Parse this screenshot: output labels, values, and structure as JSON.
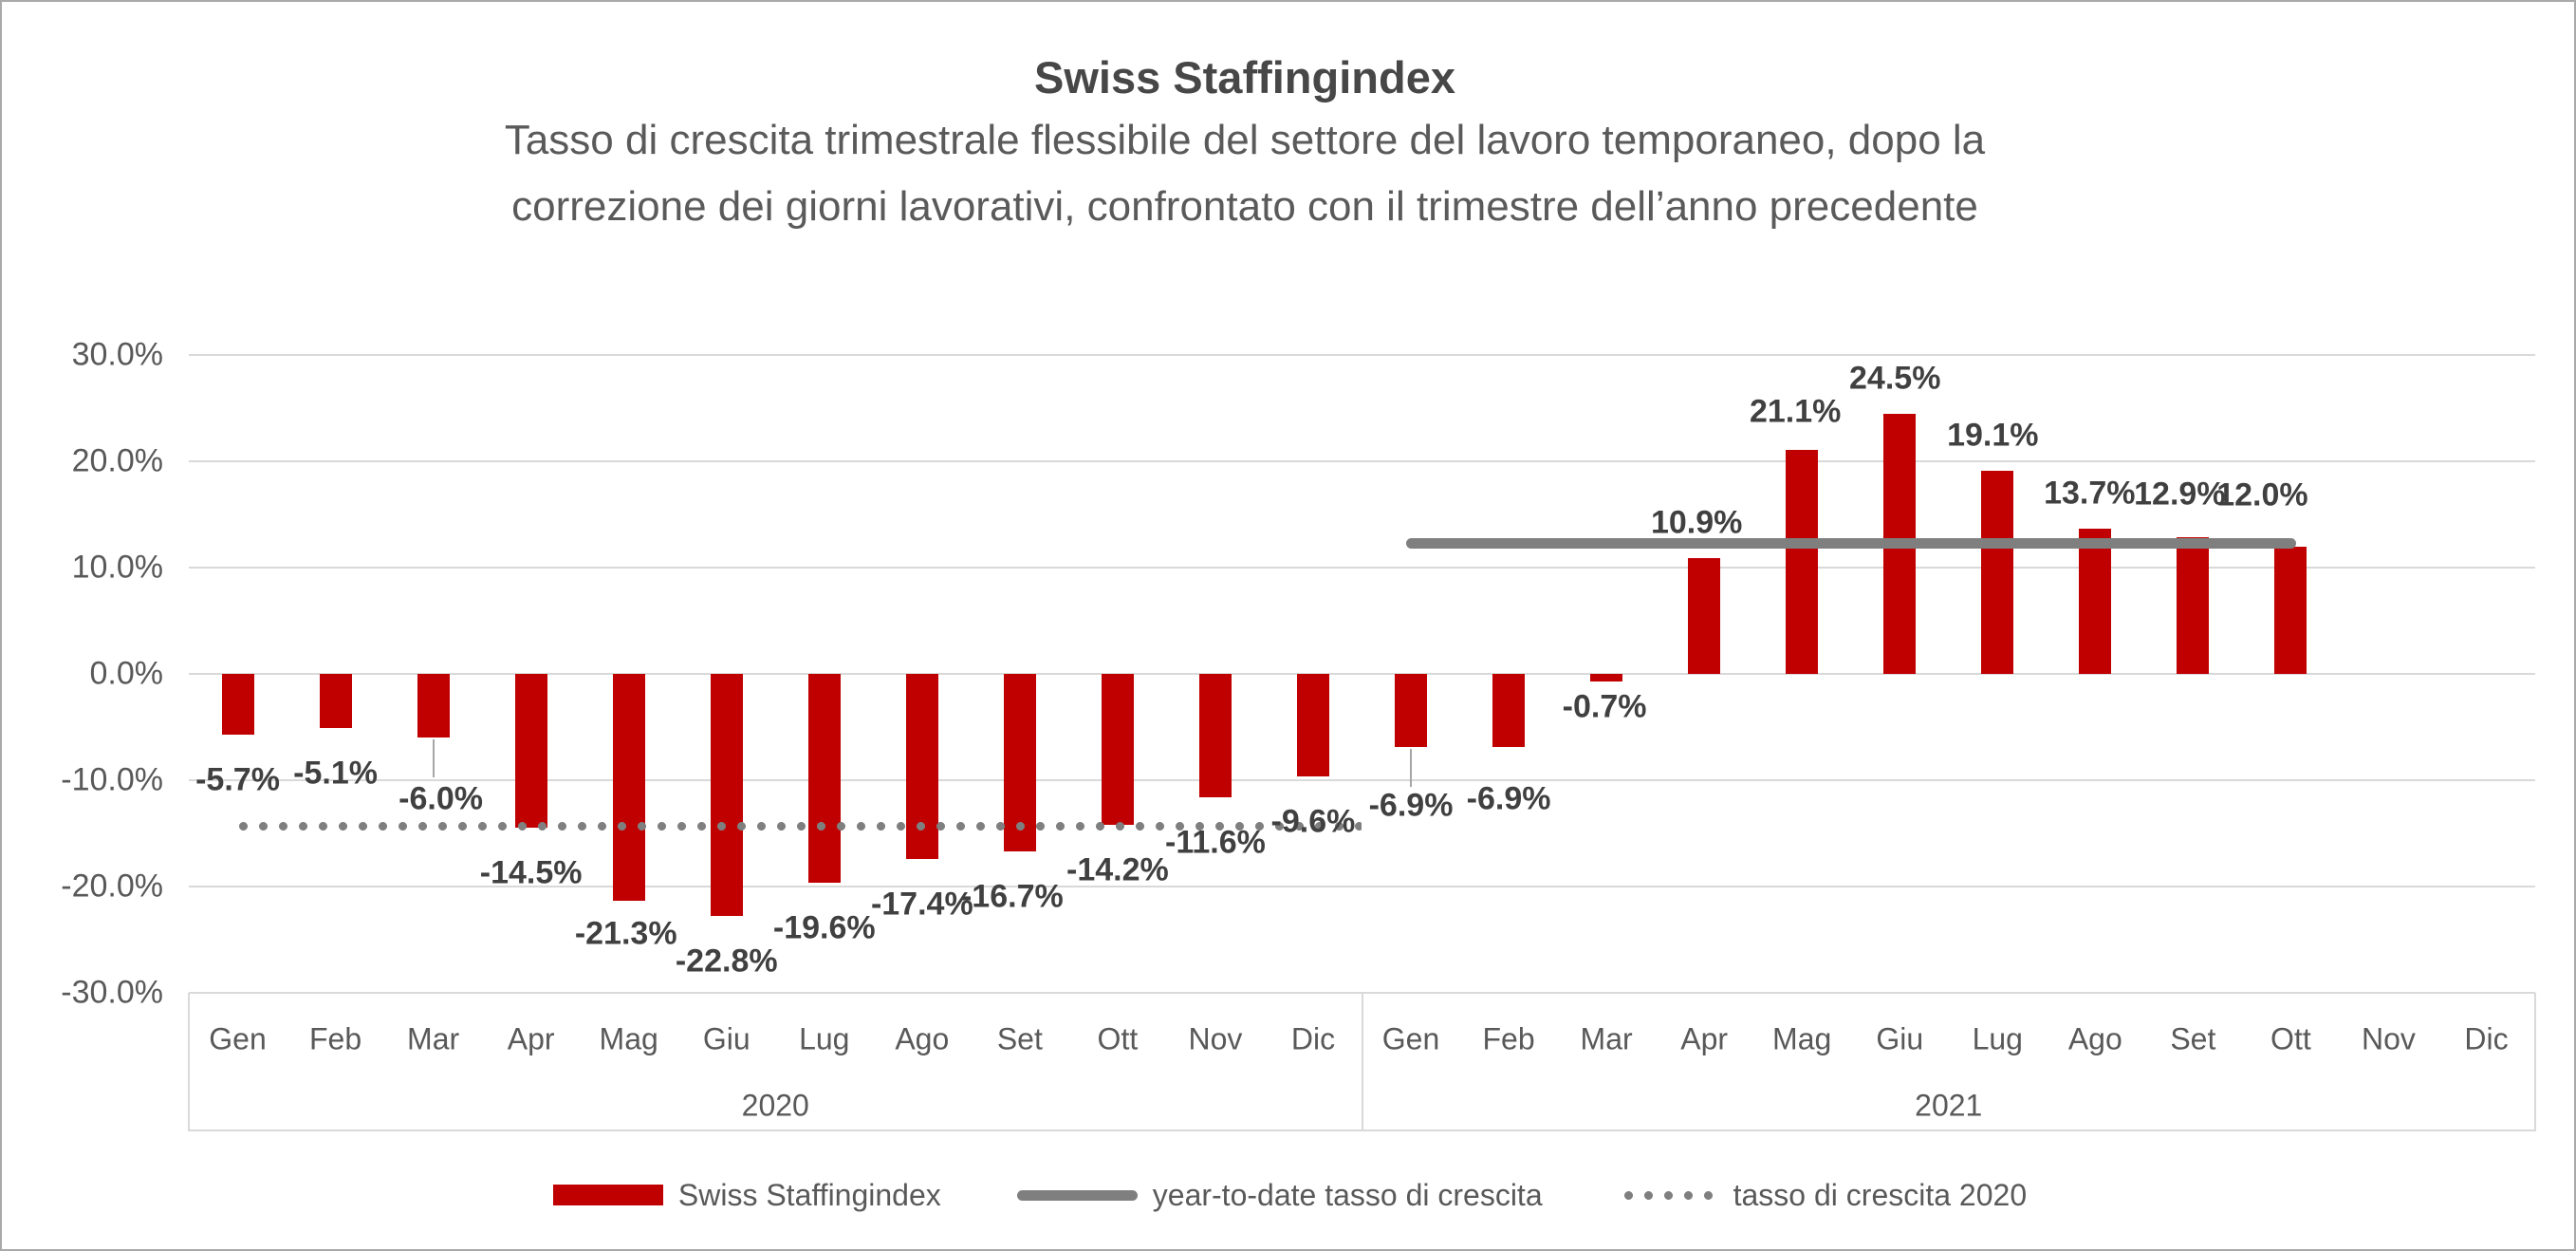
{
  "chart_data": {
    "type": "bar",
    "title": "Swiss Staffingindex",
    "subtitle_lines": [
      "Tasso di crescita trimestrale flessibile del settore del lavoro temporaneo, dopo la",
      "correzione dei giorni lavorativi, confrontato con il trimestre dell’anno precedente"
    ],
    "categories": [
      "Gen",
      "Feb",
      "Mar",
      "Apr",
      "Mag",
      "Giu",
      "Lug",
      "Ago",
      "Set",
      "Ott",
      "Nov",
      "Dic",
      "Gen",
      "Feb",
      "Mar",
      "Apr",
      "Mag",
      "Giu",
      "Lug",
      "Ago",
      "Set",
      "Ott",
      "Nov",
      "Dic"
    ],
    "year_groups": [
      {
        "label": "2020",
        "start_index": 0,
        "end_index": 11
      },
      {
        "label": "2021",
        "start_index": 12,
        "end_index": 23
      }
    ],
    "series": [
      {
        "name": "Swiss Staffingindex",
        "type": "bar",
        "color": "#c00000",
        "values": [
          -5.7,
          -5.1,
          -6.0,
          -14.5,
          -21.3,
          -22.8,
          -19.6,
          -17.4,
          -16.7,
          -14.2,
          -11.6,
          -9.6,
          -6.9,
          -6.9,
          -0.7,
          10.9,
          21.1,
          24.5,
          19.1,
          13.7,
          12.9,
          12.0,
          null,
          null
        ],
        "data_labels": [
          "-5.7%",
          "-5.1%",
          "-6.0%",
          "-14.5%",
          "-21.3%",
          "-22.8%",
          "-19.6%",
          "-17.4%",
          "-16.7%",
          "-14.2%",
          "-11.6%",
          "-9.6%",
          "-6.9%",
          "-6.9%",
          "-0.7%",
          "10.9%",
          "21.1%",
          "24.5%",
          "19.1%",
          "13.7%",
          "12.9%",
          "12.0%",
          null,
          null
        ]
      },
      {
        "name": "year-to-date tasso di crescita",
        "type": "line",
        "color": "#7f7f7f",
        "value": 12.3,
        "start_index": 12,
        "end_index": 21
      },
      {
        "name": "tasso di crescita 2020",
        "type": "dotted-line",
        "color": "#7f7f7f",
        "value": -14.3,
        "start_index": 0,
        "end_index": 11.5
      }
    ],
    "y_axis": {
      "min": -30,
      "max": 30,
      "step": 10,
      "tick_labels": [
        "30.0%",
        "20.0%",
        "10.0%",
        "0.0%",
        "-10.0%",
        "-20.0%",
        "-30.0%"
      ],
      "tick_values": [
        30,
        20,
        10,
        0,
        -10,
        -20,
        -30
      ],
      "grid": true
    },
    "legend": [
      {
        "label": "Swiss Staffingindex",
        "marker": "bar",
        "color": "#c00000"
      },
      {
        "label": "year-to-date tasso di crescita",
        "marker": "line",
        "color": "#7f7f7f"
      },
      {
        "label": "tasso di crescita 2020",
        "marker": "dotted-line",
        "color": "#7f7f7f"
      }
    ],
    "colors": {
      "bar": "#c00000",
      "reference_lines": "#7f7f7f",
      "gridlines": "#d9d9d9",
      "axis_text": "#595959",
      "data_label_text": "#404040",
      "title_text": "#474747"
    },
    "legend_position": "bottom"
  }
}
